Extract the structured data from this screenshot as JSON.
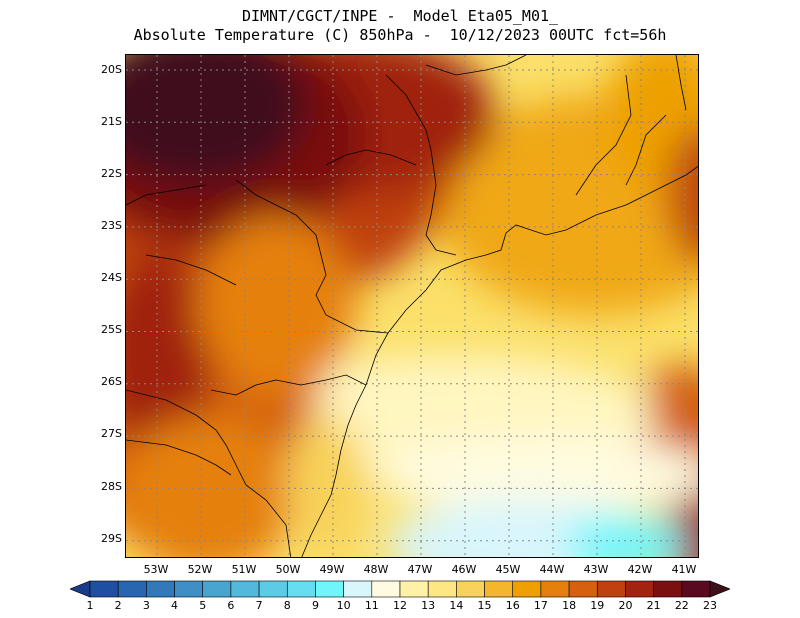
{
  "title": {
    "line1": "DIMNT/CGCT/INPE -  Model Eta05_M01_",
    "line2": "Absolute Temperature (C) 850hPa -  10/12/2023 00UTC fct=56h"
  },
  "map": {
    "lat_labels": [
      "20S",
      "21S",
      "22S",
      "23S",
      "24S",
      "25S",
      "26S",
      "27S",
      "28S",
      "29S"
    ],
    "lon_labels": [
      "53W",
      "52W",
      "51W",
      "50W",
      "49W",
      "48W",
      "47W",
      "46W",
      "45W",
      "44W",
      "43W",
      "42W",
      "41W"
    ]
  },
  "colorbar": {
    "labels": [
      "1",
      "2",
      "3",
      "4",
      "5",
      "6",
      "7",
      "8",
      "9",
      "10",
      "11",
      "12",
      "13",
      "14",
      "15",
      "16",
      "17",
      "18",
      "19",
      "20",
      "21",
      "22",
      "23"
    ],
    "colors": [
      "#1a3a8a",
      "#1f4fa0",
      "#2866b0",
      "#3378b8",
      "#3f8fc4",
      "#4aa4d0",
      "#52b8dc",
      "#5ccbe6",
      "#66ddf0",
      "#6ff6fc",
      "#d8f6fc",
      "#fffbe0",
      "#fff2a8",
      "#fde784",
      "#f8d25a",
      "#f3b62c",
      "#eda000",
      "#e5800c",
      "#d46010",
      "#bf4010",
      "#a02410",
      "#7a1010",
      "#5a0a20",
      "#40101a"
    ]
  }
}
